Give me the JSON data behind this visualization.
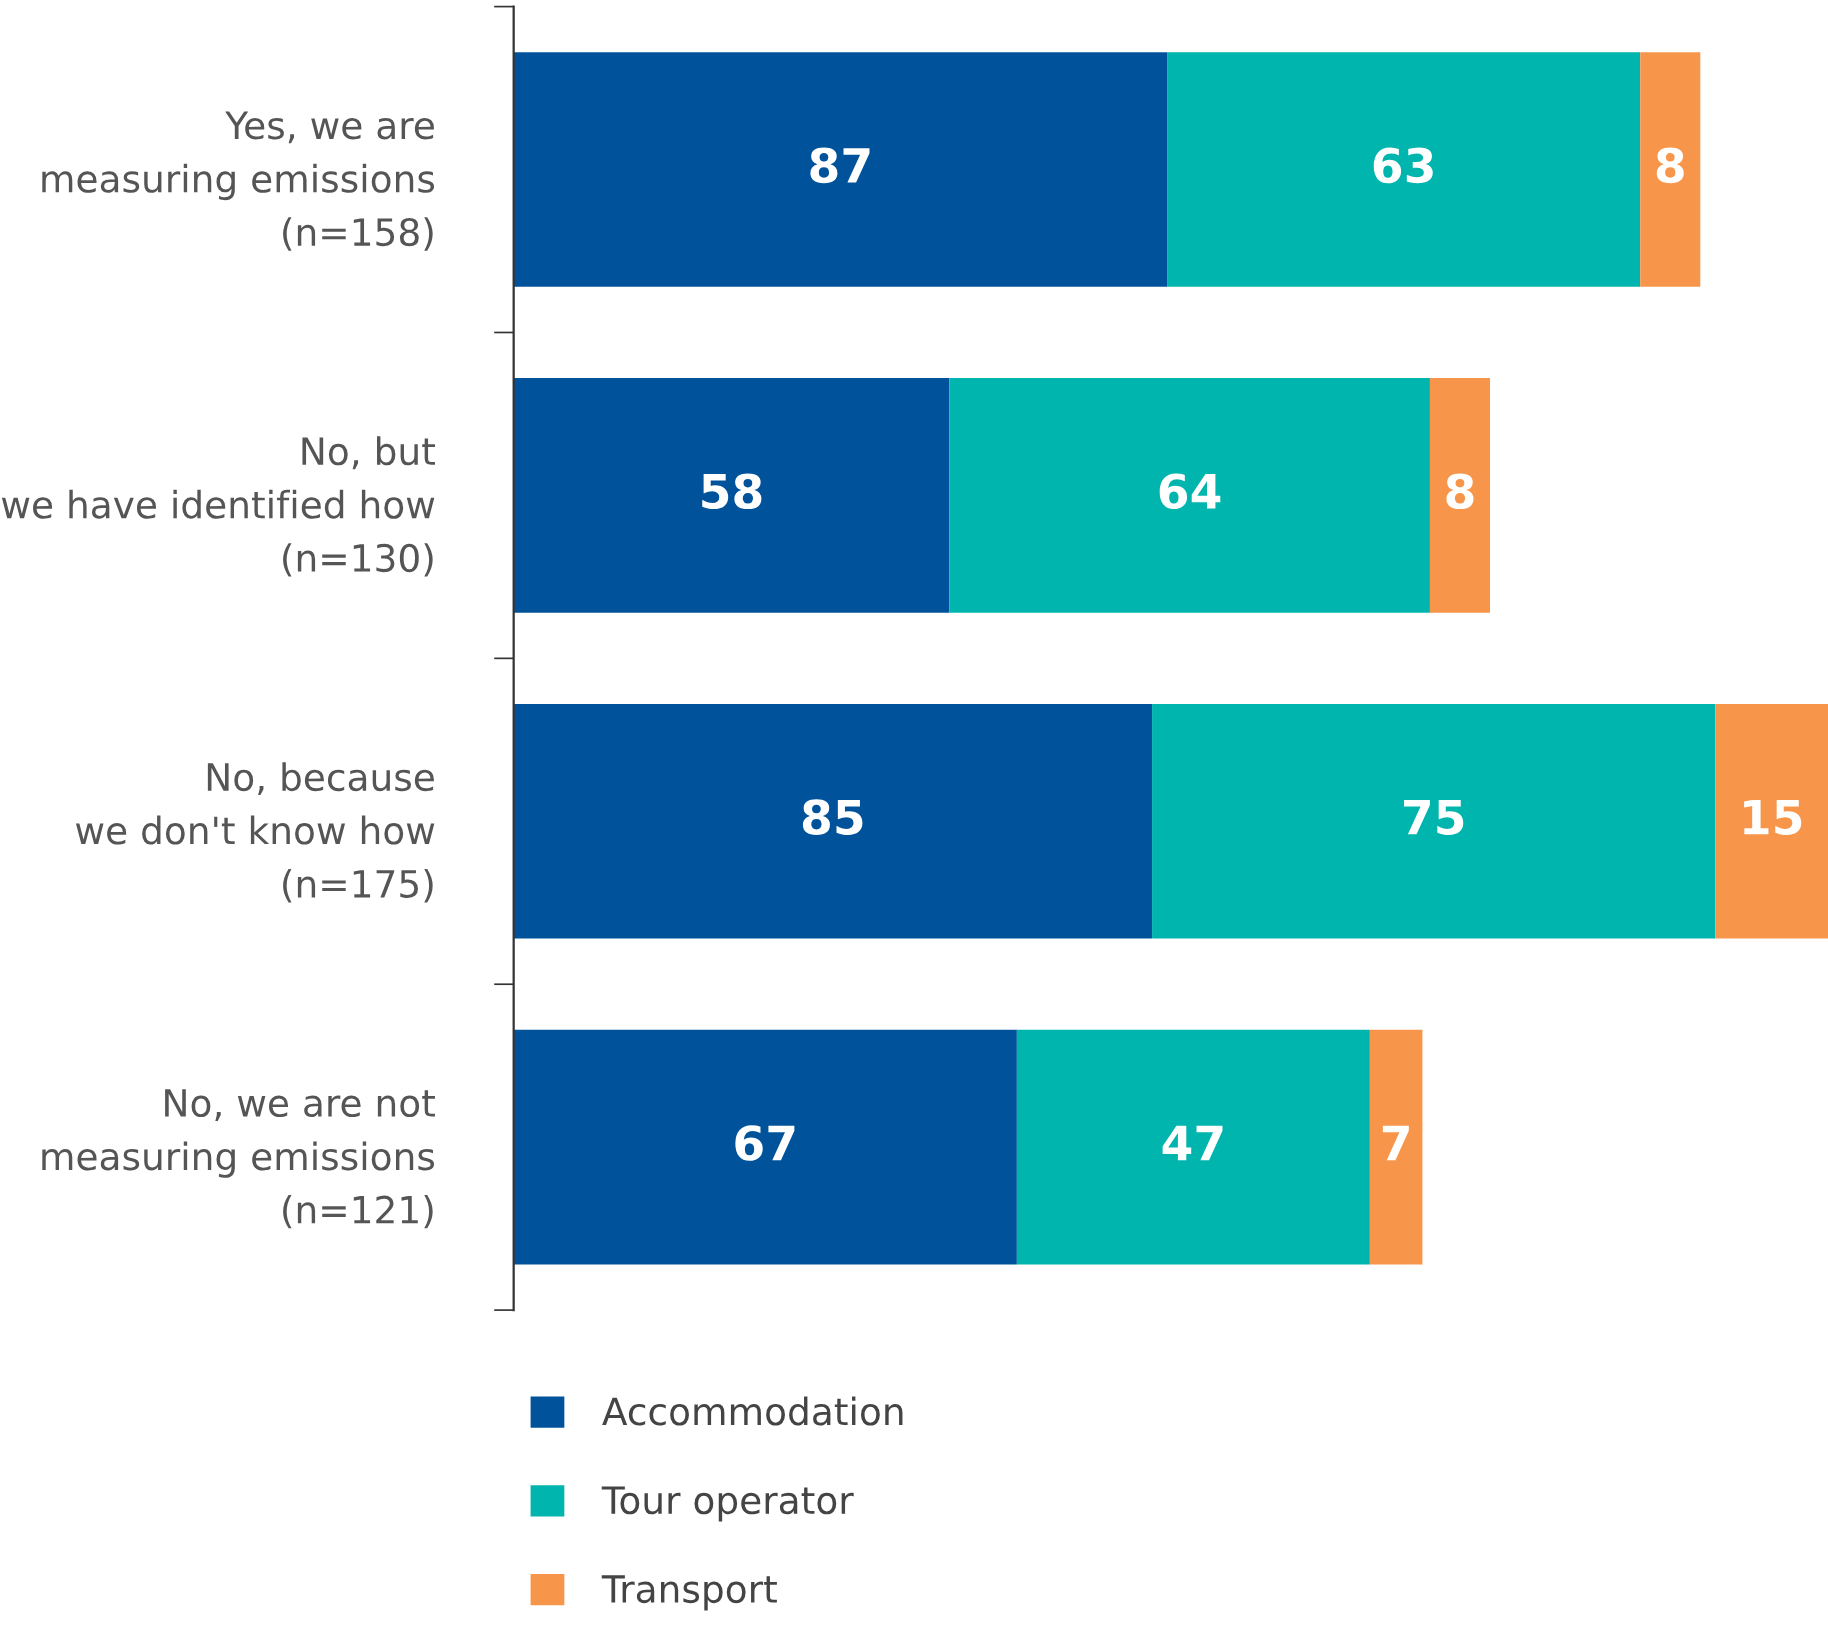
{
  "chart_data": {
    "type": "bar",
    "orientation": "horizontal",
    "stacked": true,
    "data_labels": true,
    "legend": "bottom",
    "grid": false,
    "categories": [
      "Yes, we are\nmeasuring emissions\n(n=158)",
      "No, but\nwe have identified how\n(n=130)",
      "No, because\nwe don't know how\n(n=175)",
      "No, we are not\nmeasuring emissions\n(n=121)"
    ],
    "series": [
      {
        "name": "Accommodation",
        "color": "#00539b",
        "values": [
          87,
          58,
          85,
          67
        ]
      },
      {
        "name": "Tour operator",
        "color": "#00b5ad",
        "values": [
          63,
          64,
          75,
          47
        ]
      },
      {
        "name": "Transport",
        "color": "#f7964a",
        "values": [
          8,
          8,
          15,
          7
        ]
      }
    ]
  }
}
